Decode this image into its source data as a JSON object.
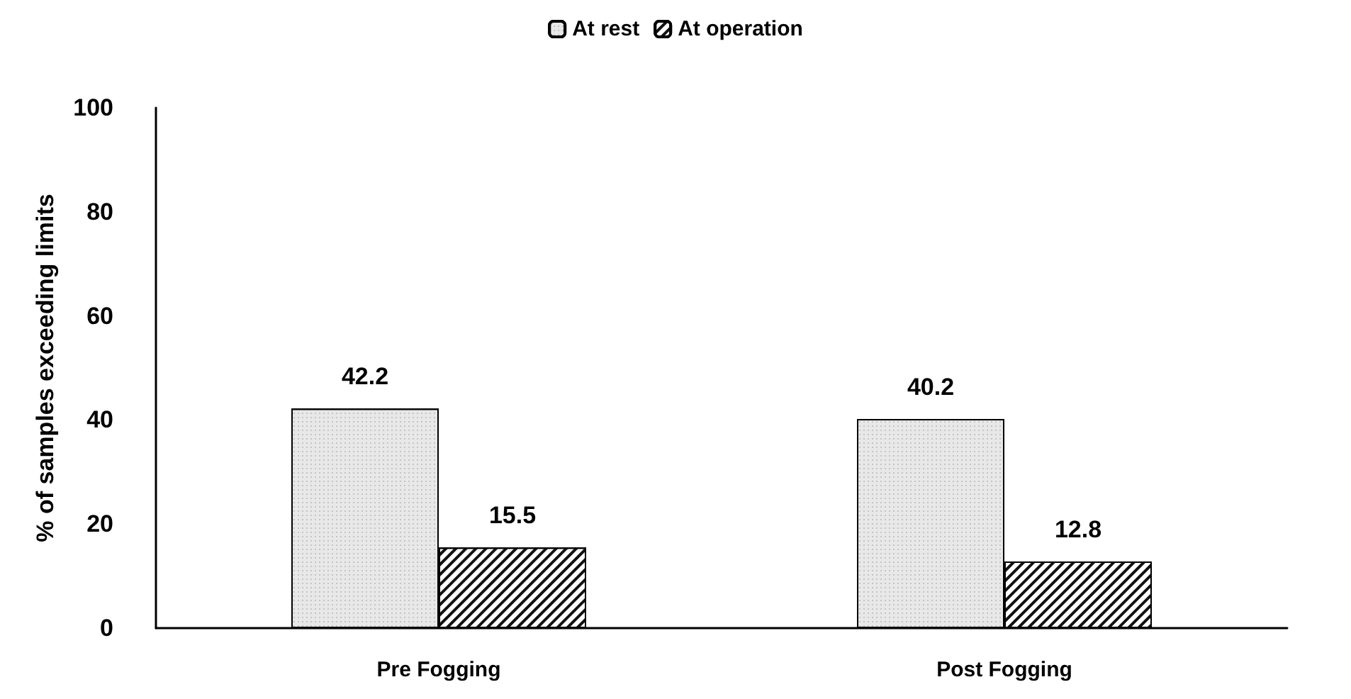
{
  "chart_data": {
    "type": "bar",
    "ylabel": "% of samples exceeding limits",
    "categories": [
      "Pre Fogging",
      "Post Fogging"
    ],
    "series": [
      {
        "name": "At rest",
        "color": "#e8e8e8",
        "values": [
          42.2,
          40.2
        ]
      },
      {
        "name": "At operation",
        "color": "#ffffff",
        "values": [
          15.5,
          12.8
        ]
      }
    ],
    "ylim": [
      0,
      100
    ],
    "yticks": [
      0,
      20,
      40,
      60,
      80,
      100
    ],
    "grid": false,
    "legend": "top",
    "data_labels": true
  }
}
